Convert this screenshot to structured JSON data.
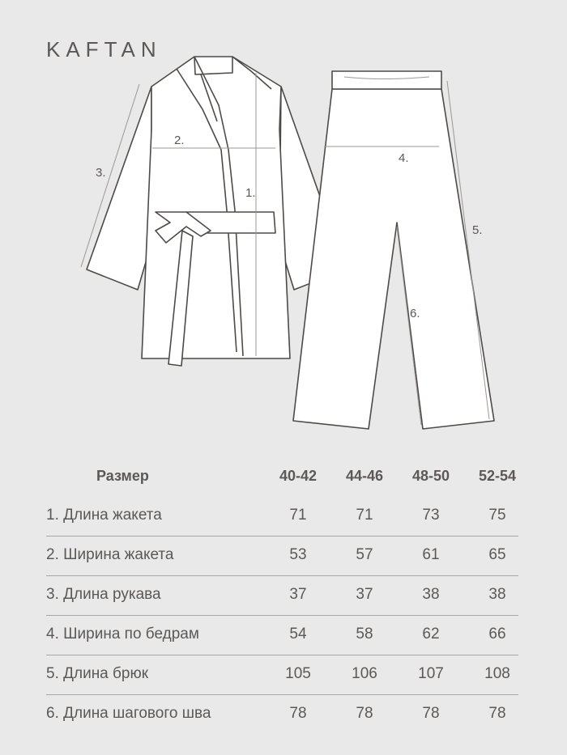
{
  "title": "KAFTAN",
  "diagram_labels": {
    "m1": "1.",
    "m2": "2.",
    "m3": "3.",
    "m4": "4.",
    "m5": "5.",
    "m6": "6."
  },
  "table": {
    "header": {
      "label": "Размер",
      "sizes": [
        "40-42",
        "44-46",
        "48-50",
        "52-54"
      ]
    },
    "rows": [
      {
        "label": "1.  Длина жакета",
        "values": [
          "71",
          "71",
          "73",
          "75"
        ]
      },
      {
        "label": "2. Ширина жакета",
        "values": [
          "53",
          "57",
          "61",
          "65"
        ]
      },
      {
        "label": "3.  Длина рукава",
        "values": [
          "37",
          "37",
          "38",
          "38"
        ]
      },
      {
        "label": "4. Ширина по бедрам",
        "values": [
          "54",
          "58",
          "62",
          "66"
        ]
      },
      {
        "label": "5. Длина брюк",
        "values": [
          "105",
          "106",
          "107",
          "108"
        ]
      },
      {
        "label": "6. Длина шагового шва",
        "values": [
          "78",
          "78",
          "78",
          "78"
        ]
      }
    ]
  },
  "colors": {
    "background": "#e8e9e8",
    "text": "#5d5856",
    "garment": "#ffffff",
    "outline": "#4e4a48"
  }
}
